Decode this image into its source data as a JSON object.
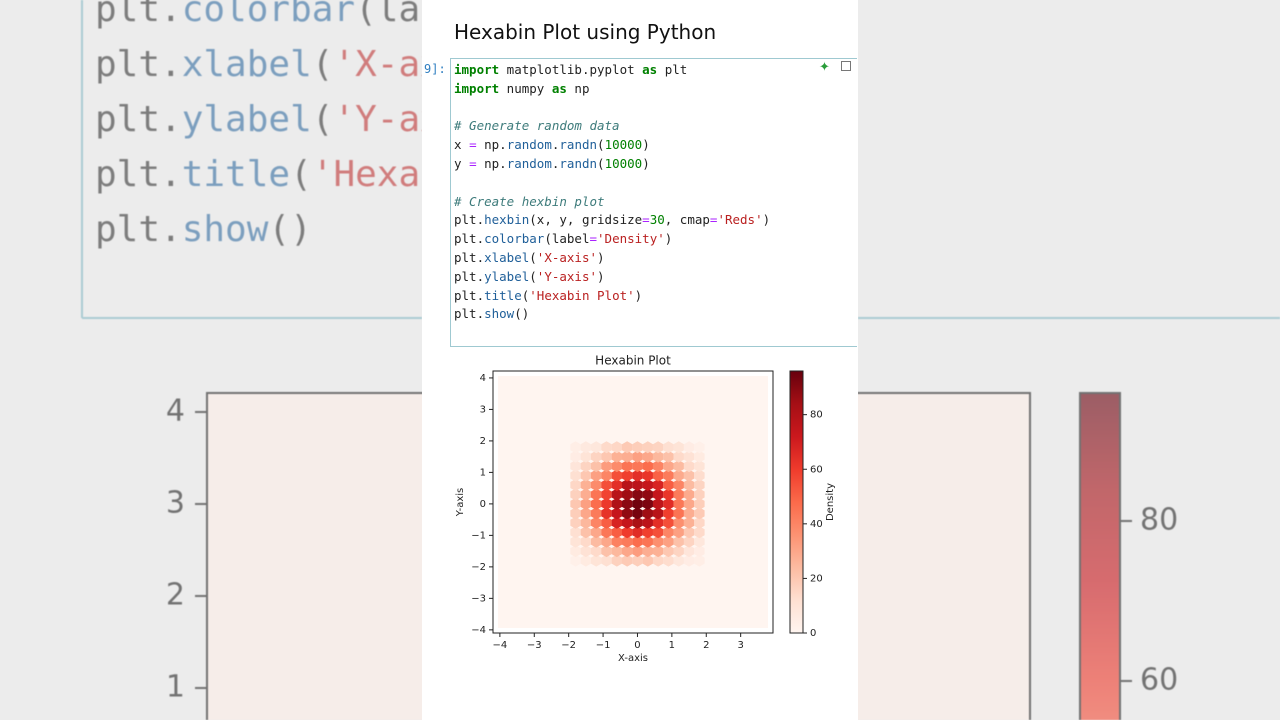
{
  "header": {
    "title": "Hexabin Plot using Python"
  },
  "code": {
    "prompt": "9]:",
    "lines": [
      [
        {
          "text": "import",
          "color": "#008000",
          "bold": true
        },
        {
          "text": " matplotlib.pyplot "
        },
        {
          "text": "as",
          "color": "#008000",
          "bold": true
        },
        {
          "text": " plt"
        }
      ],
      [
        {
          "text": "import",
          "color": "#008000",
          "bold": true
        },
        {
          "text": " numpy "
        },
        {
          "text": "as",
          "color": "#008000",
          "bold": true
        },
        {
          "text": " np"
        }
      ],
      [],
      [
        {
          "text": "# Generate random data",
          "color": "#3d7b7b",
          "italic": true
        }
      ],
      [
        {
          "text": "x "
        },
        {
          "text": "=",
          "color": "#aa22ff"
        },
        {
          "text": " np."
        },
        {
          "text": "random",
          "color": "#1f5f99"
        },
        {
          "text": "."
        },
        {
          "text": "randn",
          "color": "#1f5f99"
        },
        {
          "text": "("
        },
        {
          "text": "10000",
          "color": "#008000"
        },
        {
          "text": ")"
        }
      ],
      [
        {
          "text": "y "
        },
        {
          "text": "=",
          "color": "#aa22ff"
        },
        {
          "text": " np."
        },
        {
          "text": "random",
          "color": "#1f5f99"
        },
        {
          "text": "."
        },
        {
          "text": "randn",
          "color": "#1f5f99"
        },
        {
          "text": "("
        },
        {
          "text": "10000",
          "color": "#008000"
        },
        {
          "text": ")"
        }
      ],
      [],
      [
        {
          "text": "# Create hexbin plot",
          "color": "#3d7b7b",
          "italic": true
        }
      ],
      [
        {
          "text": "plt."
        },
        {
          "text": "hexbin",
          "color": "#1f5f99"
        },
        {
          "text": "(x, y, gridsize"
        },
        {
          "text": "=",
          "color": "#aa22ff"
        },
        {
          "text": "30",
          "color": "#008000"
        },
        {
          "text": ", cmap"
        },
        {
          "text": "=",
          "color": "#aa22ff"
        },
        {
          "text": "'Reds'",
          "color": "#ba2121"
        },
        {
          "text": ")"
        }
      ],
      [
        {
          "text": "plt."
        },
        {
          "text": "colorbar",
          "color": "#1f5f99"
        },
        {
          "text": "(label"
        },
        {
          "text": "=",
          "color": "#aa22ff"
        },
        {
          "text": "'Density'",
          "color": "#ba2121"
        },
        {
          "text": ")"
        }
      ],
      [
        {
          "text": "plt."
        },
        {
          "text": "xlabel",
          "color": "#1f5f99"
        },
        {
          "text": "("
        },
        {
          "text": "'X-axis'",
          "color": "#ba2121"
        },
        {
          "text": ")"
        }
      ],
      [
        {
          "text": "plt."
        },
        {
          "text": "ylabel",
          "color": "#1f5f99"
        },
        {
          "text": "("
        },
        {
          "text": "'Y-axis'",
          "color": "#ba2121"
        },
        {
          "text": ")"
        }
      ],
      [
        {
          "text": "plt."
        },
        {
          "text": "title",
          "color": "#1f5f99"
        },
        {
          "text": "("
        },
        {
          "text": "'Hexabin Plot'",
          "color": "#ba2121"
        },
        {
          "text": ")"
        }
      ],
      [
        {
          "text": "plt."
        },
        {
          "text": "show",
          "color": "#1f5f99"
        },
        {
          "text": "()"
        }
      ]
    ]
  },
  "chart_data": {
    "type": "hexbin",
    "title": "Hexabin Plot",
    "x_label": "X-axis",
    "y_label": "Y-axis",
    "colorbar_label": "Density",
    "x": [
      -1.8,
      -1.5,
      -1.2,
      -0.9,
      -0.6,
      -0.3,
      0,
      0.3,
      0.6,
      0.9,
      1.2,
      1.5,
      1.8
    ],
    "y": [
      -1.8,
      -1.5,
      -1.2,
      -0.9,
      -0.6,
      -0.3,
      0,
      0.3,
      0.6,
      0.9,
      1.2,
      1.5,
      1.8
    ],
    "counts": [
      [
        3,
        6,
        10,
        12,
        17,
        19,
        18,
        20,
        15,
        13,
        8,
        5,
        4
      ],
      [
        6,
        11,
        14,
        22,
        25,
        30,
        33,
        28,
        27,
        20,
        16,
        9,
        5
      ],
      [
        10,
        14,
        24,
        30,
        41,
        43,
        47,
        45,
        37,
        32,
        22,
        16,
        8
      ],
      [
        12,
        22,
        30,
        44,
        51,
        60,
        65,
        59,
        55,
        40,
        32,
        20,
        14
      ],
      [
        17,
        25,
        40,
        51,
        68,
        74,
        82,
        77,
        64,
        55,
        37,
        27,
        15
      ],
      [
        18,
        30,
        43,
        63,
        74,
        88,
        93,
        85,
        78,
        59,
        45,
        28,
        19
      ],
      [
        20,
        32,
        47,
        61,
        81,
        89,
        94,
        92,
        76,
        65,
        44,
        30,
        18
      ],
      [
        17,
        28,
        45,
        58,
        78,
        85,
        90,
        88,
        74,
        62,
        43,
        29,
        17
      ],
      [
        15,
        27,
        38,
        55,
        64,
        78,
        77,
        74,
        68,
        51,
        40,
        24,
        16
      ],
      [
        12,
        20,
        32,
        40,
        55,
        59,
        64,
        62,
        50,
        43,
        29,
        22,
        13
      ],
      [
        9,
        16,
        22,
        33,
        38,
        45,
        44,
        47,
        40,
        30,
        24,
        14,
        10
      ],
      [
        5,
        10,
        16,
        20,
        27,
        28,
        32,
        30,
        25,
        22,
        14,
        11,
        6
      ],
      [
        4,
        7,
        8,
        14,
        15,
        19,
        18,
        17,
        16,
        12,
        10,
        5,
        3
      ]
    ],
    "xlim": [
      -4.2,
      3.94
    ],
    "ylim": [
      -4.1,
      4.22
    ],
    "xticks": [
      {
        "value": -4,
        "label": "−4"
      },
      {
        "value": -3,
        "label": "−3"
      },
      {
        "value": -2,
        "label": "−2"
      },
      {
        "value": -1,
        "label": "−1"
      },
      0,
      1,
      2,
      3
    ],
    "yticks": [
      {
        "value": -4,
        "label": "−4"
      },
      {
        "value": -3,
        "label": "−3"
      },
      {
        "value": -2,
        "label": "−2"
      },
      {
        "value": -1,
        "label": "−1"
      },
      0,
      1,
      2,
      3,
      4
    ],
    "clim": [
      0,
      96
    ],
    "cticks": [
      0,
      20,
      40,
      60,
      80
    ],
    "colormap": [
      "#fff5f0",
      "#fee0d2",
      "#fcbba1",
      "#fc9272",
      "#fb6a4a",
      "#ef3b2c",
      "#cb181d",
      "#a50f15",
      "#67000d"
    ]
  }
}
